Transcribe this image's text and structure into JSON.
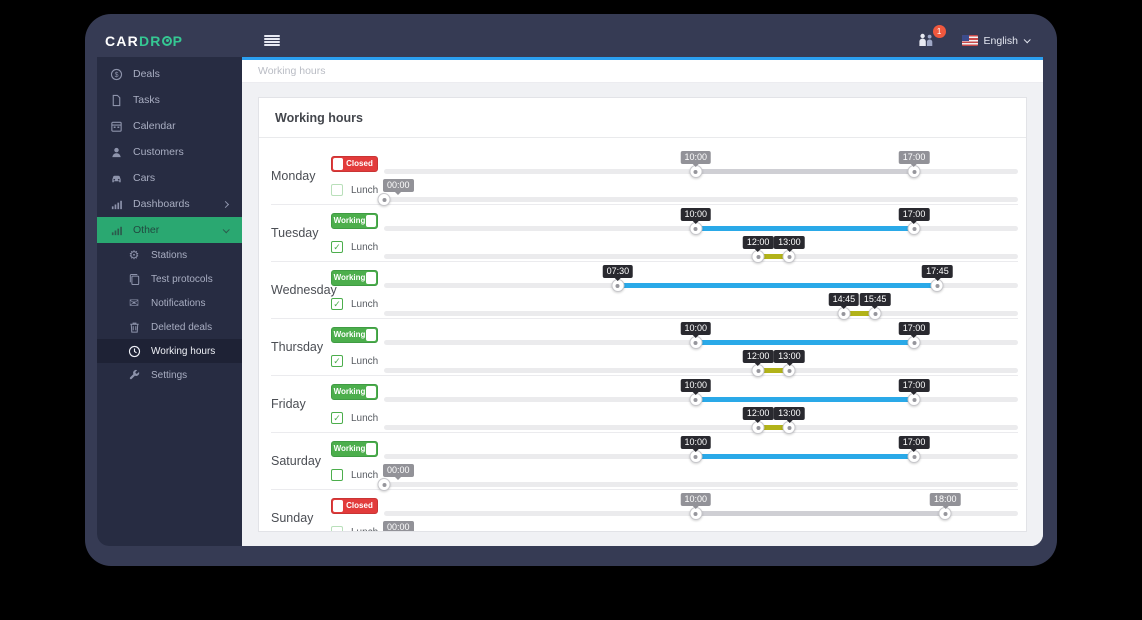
{
  "logo": {
    "part1": "CAR",
    "part2": "DR",
    "part3": "P"
  },
  "topbar": {
    "badge_count": "1",
    "language": "English"
  },
  "breadcrumb": "Working hours",
  "card": {
    "title": "Working hours"
  },
  "controls": {
    "lunch_label": "Lunch",
    "working_label": "Working",
    "closed_label": "Closed"
  },
  "sidebar": {
    "items": [
      {
        "label": "Deals",
        "icon": "deals-icon"
      },
      {
        "label": "Tasks",
        "icon": "tasks-icon"
      },
      {
        "label": "Calendar",
        "icon": "calendar-icon"
      },
      {
        "label": "Customers",
        "icon": "customers-icon"
      },
      {
        "label": "Cars",
        "icon": "cars-icon"
      },
      {
        "label": "Dashboards",
        "icon": "dashboards-icon",
        "chevron": "right"
      },
      {
        "label": "Other",
        "icon": "other-icon",
        "chevron": "down",
        "active": true
      }
    ],
    "sub_items": [
      {
        "label": "Stations",
        "icon": "stations-icon"
      },
      {
        "label": "Test protocols",
        "icon": "test-protocols-icon"
      },
      {
        "label": "Notifications",
        "icon": "notifications-icon"
      },
      {
        "label": "Deleted deals",
        "icon": "deleted-deals-icon"
      },
      {
        "label": "Working hours",
        "icon": "working-hours-icon",
        "active": true
      },
      {
        "label": "Settings",
        "icon": "settings-icon"
      }
    ]
  },
  "days": [
    {
      "name": "Monday",
      "working": false,
      "status_label": "Closed",
      "work_start": "10:00",
      "work_end": "17:00",
      "lunch_enabled": false,
      "lunch_start": "00:00",
      "lunch_end": "00:00"
    },
    {
      "name": "Tuesday",
      "working": true,
      "status_label": "Working",
      "work_start": "10:00",
      "work_end": "17:00",
      "lunch_enabled": true,
      "lunch_start": "12:00",
      "lunch_end": "13:00"
    },
    {
      "name": "Wednesday",
      "working": true,
      "status_label": "Working",
      "work_start": "07:30",
      "work_end": "17:45",
      "lunch_enabled": true,
      "lunch_start": "14:45",
      "lunch_end": "15:45"
    },
    {
      "name": "Thursday",
      "working": true,
      "status_label": "Working",
      "work_start": "10:00",
      "work_end": "17:00",
      "lunch_enabled": true,
      "lunch_start": "12:00",
      "lunch_end": "13:00"
    },
    {
      "name": "Friday",
      "working": true,
      "status_label": "Working",
      "work_start": "10:00",
      "work_end": "17:00",
      "lunch_enabled": true,
      "lunch_start": "12:00",
      "lunch_end": "13:00"
    },
    {
      "name": "Saturday",
      "working": true,
      "status_label": "Working",
      "work_start": "10:00",
      "work_end": "17:00",
      "lunch_enabled": false,
      "lunch_start": "00:00",
      "lunch_end": "00:00"
    },
    {
      "name": "Sunday",
      "working": false,
      "status_label": "Closed",
      "work_start": "10:00",
      "work_end": "18:00",
      "lunch_enabled": false,
      "lunch_start": "00:00",
      "lunch_end": "00:00"
    }
  ],
  "colors": {
    "accent_green": "#2aa871",
    "logo_green": "#35c893",
    "working_green": "#4cae4c",
    "closed_red": "#e23b3b",
    "slider_blue": "#2aa9e8",
    "lunch_olive": "#b2b319",
    "disabled_gray": "#cfcfd4",
    "top_blue_line": "#2b9ff0",
    "frame_navy": "#363b54",
    "sidebar_navy": "#272c42"
  }
}
